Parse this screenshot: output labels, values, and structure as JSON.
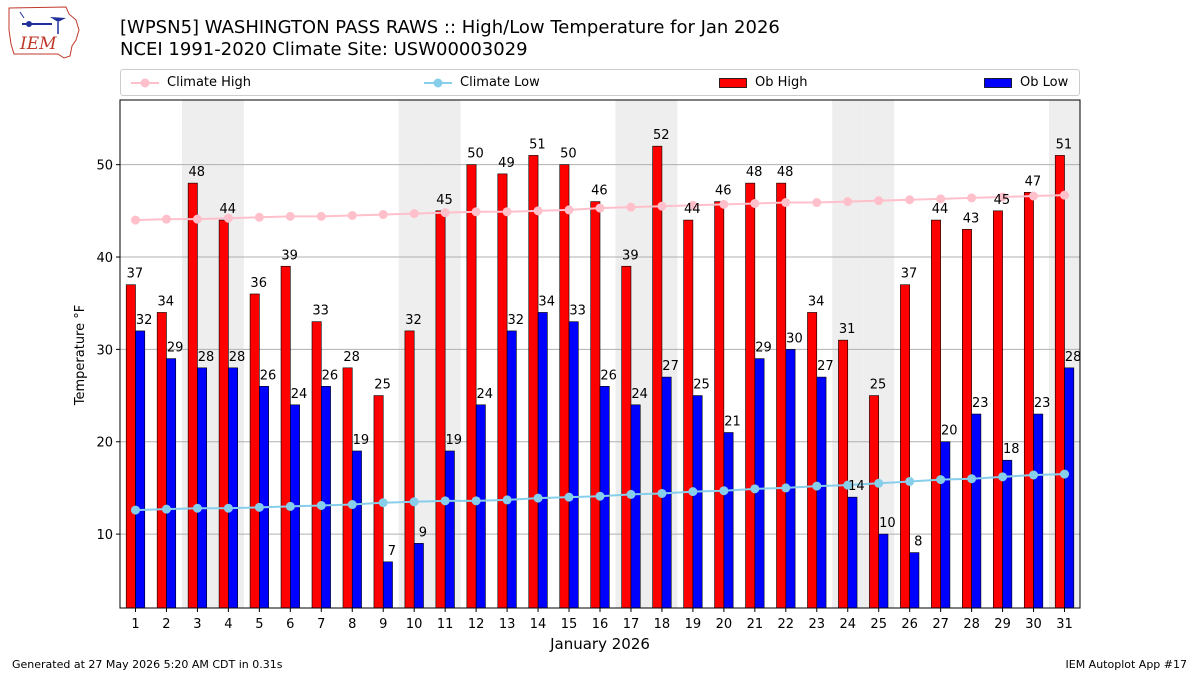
{
  "header": {
    "title_line1": "[WPSN5] WASHINGTON PASS RAWS :: High/Low Temperature for Jan 2026",
    "title_line2": "NCEI 1991-2020 Climate Site: USW00003029",
    "logo_text": "IEM"
  },
  "footer": {
    "generated": "Generated at 27 May 2026 5:20 AM CDT in 0.31s",
    "app": "IEM Autoplot App #17"
  },
  "colors": {
    "ob_high": "#ff0000",
    "ob_low": "#0000ff",
    "climate_high": "#ffc0cb",
    "climate_low": "#87ceeb",
    "weekend_shade": "#eeeeee"
  },
  "chart_data": {
    "type": "bar",
    "xlabel": "January 2026",
    "ylabel": "Temperature °F",
    "ylim": [
      2,
      57
    ],
    "yticks": [
      10,
      20,
      30,
      40,
      50
    ],
    "grid": true,
    "legend_position": "top",
    "categories": [
      "1",
      "2",
      "3",
      "4",
      "5",
      "6",
      "7",
      "8",
      "9",
      "10",
      "11",
      "12",
      "13",
      "14",
      "15",
      "16",
      "17",
      "18",
      "19",
      "20",
      "21",
      "22",
      "23",
      "24",
      "25",
      "26",
      "27",
      "28",
      "29",
      "30",
      "31"
    ],
    "shaded_days": [
      3,
      4,
      10,
      11,
      17,
      18,
      24,
      25,
      31
    ],
    "series": [
      {
        "name": "Climate High",
        "kind": "line",
        "color": "#ffc0cb",
        "values": [
          44.0,
          44.1,
          44.1,
          44.2,
          44.3,
          44.4,
          44.4,
          44.5,
          44.6,
          44.7,
          44.8,
          44.9,
          44.9,
          45.0,
          45.1,
          45.3,
          45.4,
          45.5,
          45.6,
          45.7,
          45.8,
          45.9,
          45.9,
          46.0,
          46.1,
          46.2,
          46.3,
          46.4,
          46.5,
          46.6,
          46.7
        ]
      },
      {
        "name": "Climate Low",
        "kind": "line",
        "color": "#87ceeb",
        "values": [
          12.6,
          12.7,
          12.8,
          12.8,
          12.9,
          13.0,
          13.1,
          13.2,
          13.4,
          13.5,
          13.6,
          13.6,
          13.7,
          13.9,
          14.0,
          14.1,
          14.3,
          14.4,
          14.6,
          14.7,
          14.9,
          15.0,
          15.2,
          15.3,
          15.5,
          15.7,
          15.9,
          16.0,
          16.2,
          16.4,
          16.5
        ]
      },
      {
        "name": "Ob High",
        "kind": "bar",
        "color": "#ff0000",
        "values": [
          37,
          34,
          48,
          44,
          36,
          39,
          33,
          28,
          25,
          32,
          45,
          50,
          49,
          51,
          50,
          46,
          39,
          52,
          44,
          46,
          48,
          48,
          34,
          31,
          25,
          37,
          44,
          43,
          45,
          47,
          51
        ]
      },
      {
        "name": "Ob Low",
        "kind": "bar",
        "color": "#0000ff",
        "values": [
          32,
          29,
          28,
          28,
          26,
          24,
          26,
          19,
          7,
          9,
          19,
          24,
          32,
          34,
          33,
          26,
          24,
          27,
          25,
          21,
          29,
          30,
          27,
          14,
          10,
          8,
          20,
          23,
          18,
          23,
          28
        ]
      }
    ]
  }
}
